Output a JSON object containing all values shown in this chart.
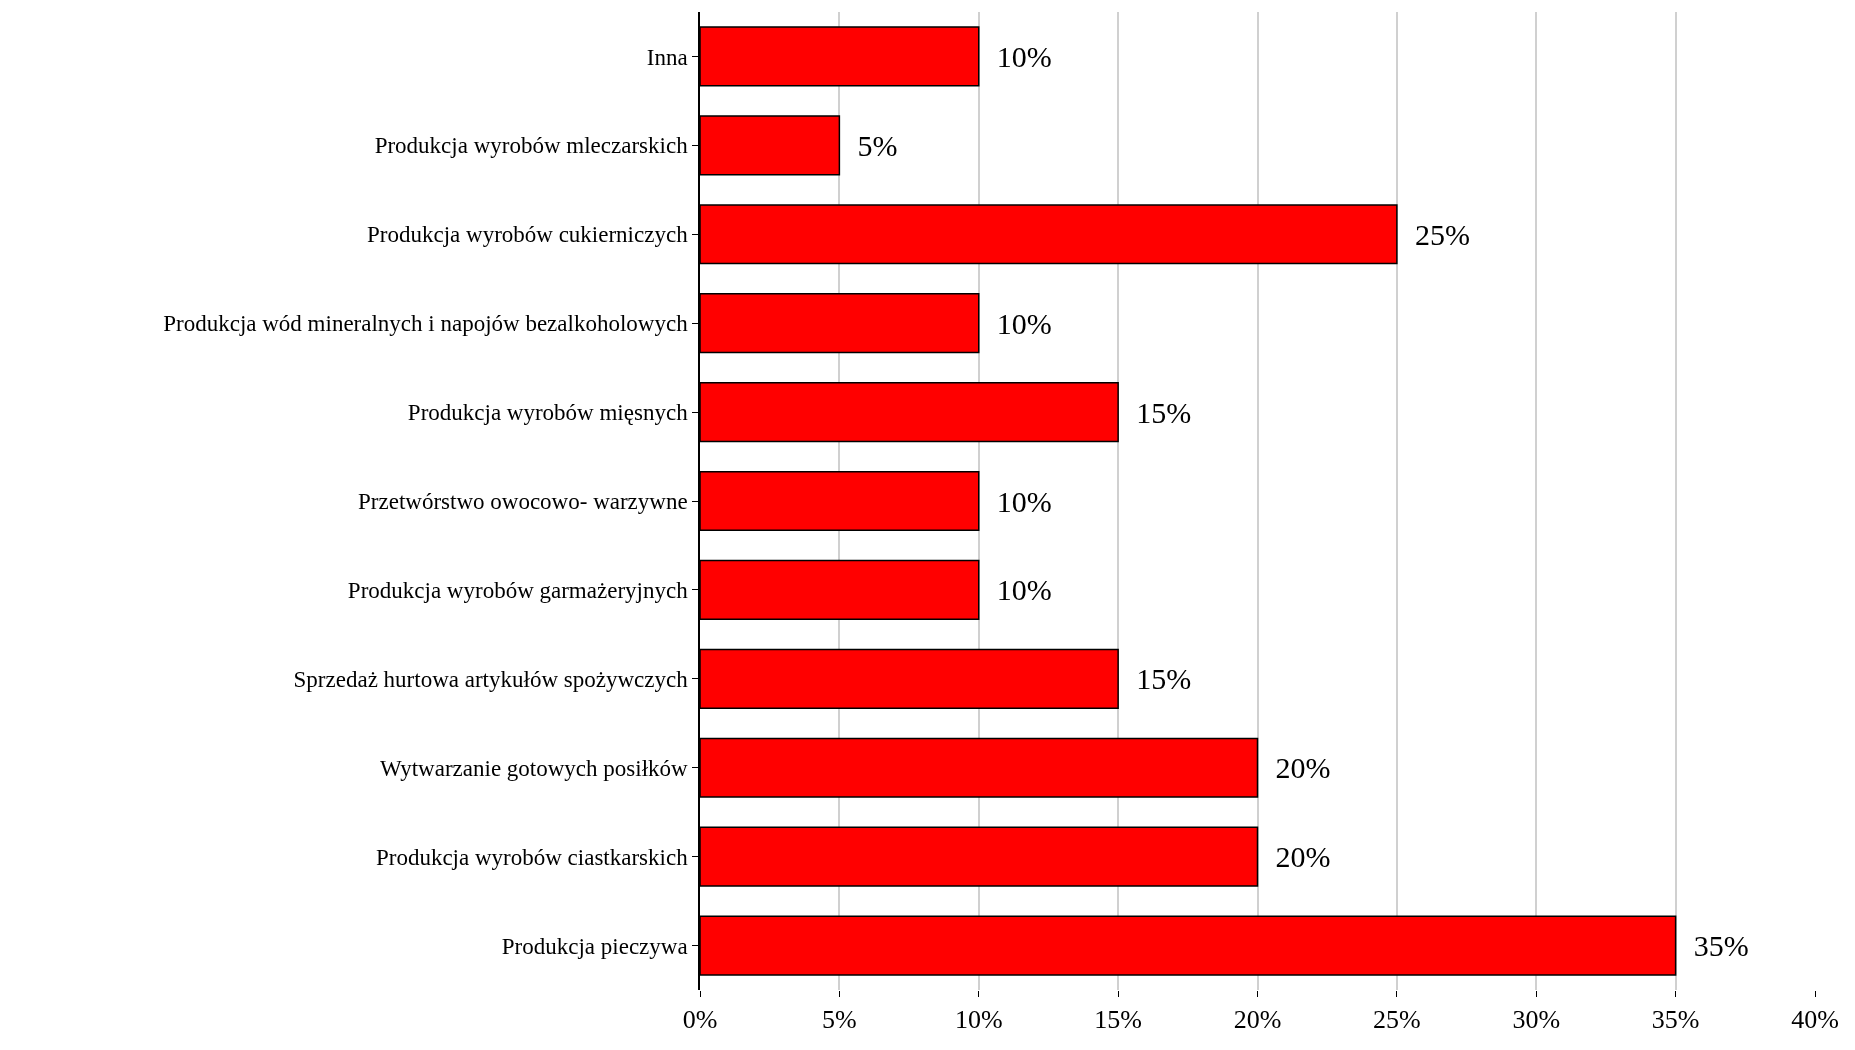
{
  "chart_data": {
    "type": "bar",
    "orientation": "horizontal",
    "categories": [
      "Inna",
      "Produkcja wyrobów mleczarskich",
      "Produkcja wyrobów cukierniczych",
      "Produkcja wód mineralnych i napojów bezalkoholowych",
      "Produkcja wyrobów mięsnych",
      "Przetwórstwo owocowo- warzywne",
      "Produkcja wyrobów garmażeryjnych",
      "Sprzedaż hurtowa artykułów spożywczych",
      "Wytwarzanie gotowych posiłków",
      "Produkcja wyrobów ciastkarskich",
      "Produkcja pieczywa"
    ],
    "values": [
      10,
      5,
      25,
      10,
      15,
      10,
      10,
      15,
      20,
      20,
      35
    ],
    "value_labels": [
      "10%",
      "5%",
      "25%",
      "10%",
      "15%",
      "10%",
      "10%",
      "15%",
      "20%",
      "20%",
      "35%"
    ],
    "color": "#ff0000",
    "xlim": [
      0,
      40
    ],
    "xticks": [
      {
        "value": 0,
        "label": "0%"
      },
      {
        "value": 5,
        "label": "5%"
      },
      {
        "value": 10,
        "label": "10%"
      },
      {
        "value": 15,
        "label": "15%"
      },
      {
        "value": 20,
        "label": "20%"
      },
      {
        "value": 25,
        "label": "25%"
      },
      {
        "value": 30,
        "label": "30%"
      },
      {
        "value": 35,
        "label": "35%"
      },
      {
        "value": 40,
        "label": "40%"
      }
    ],
    "grid": "x"
  }
}
